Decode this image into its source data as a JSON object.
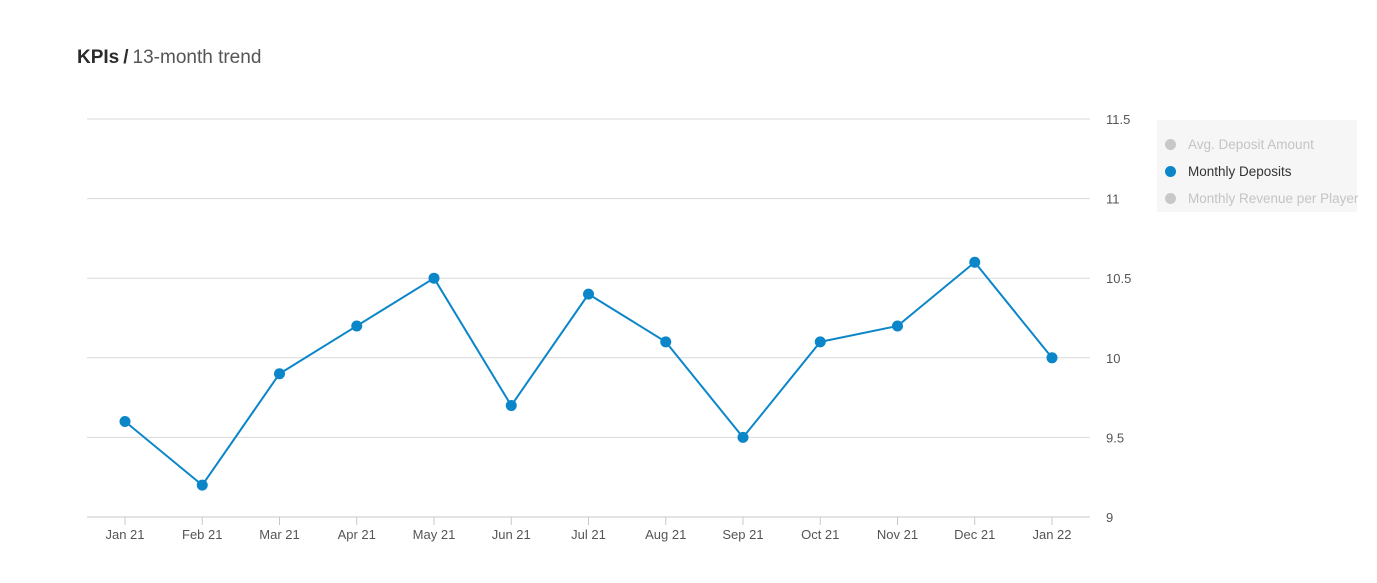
{
  "header": {
    "title": "KPIs",
    "separator": "/",
    "subtitle": "13-month trend"
  },
  "colors": {
    "series": "#0a86c9",
    "inactive": "#c8c8c8",
    "grid": "#d9d9d9"
  },
  "legend": {
    "placement": "right",
    "items": [
      {
        "label": "Avg. Deposit Amount",
        "active": false
      },
      {
        "label": "Monthly Deposits",
        "active": true
      },
      {
        "label": "Monthly Revenue per Player",
        "active": false
      }
    ]
  },
  "chart_data": {
    "type": "line",
    "title": "",
    "xlabel": "",
    "ylabel": "",
    "categories": [
      "Jan 21",
      "Feb 21",
      "Mar 21",
      "Apr 21",
      "May 21",
      "Jun 21",
      "Jul 21",
      "Aug 21",
      "Sep 21",
      "Oct 21",
      "Nov 21",
      "Dec 21",
      "Jan 22"
    ],
    "series": [
      {
        "name": "Monthly Deposits",
        "values": [
          9.6,
          9.2,
          9.9,
          10.2,
          10.5,
          9.7,
          10.4,
          10.1,
          9.5,
          10.1,
          10.2,
          10.6,
          10.0
        ]
      }
    ],
    "ylim": [
      9,
      11.5
    ],
    "yticks": [
      "9",
      "9.5",
      "10",
      "10.5",
      "11",
      "11.5"
    ],
    "y_axis_side": "right",
    "grid": true
  }
}
